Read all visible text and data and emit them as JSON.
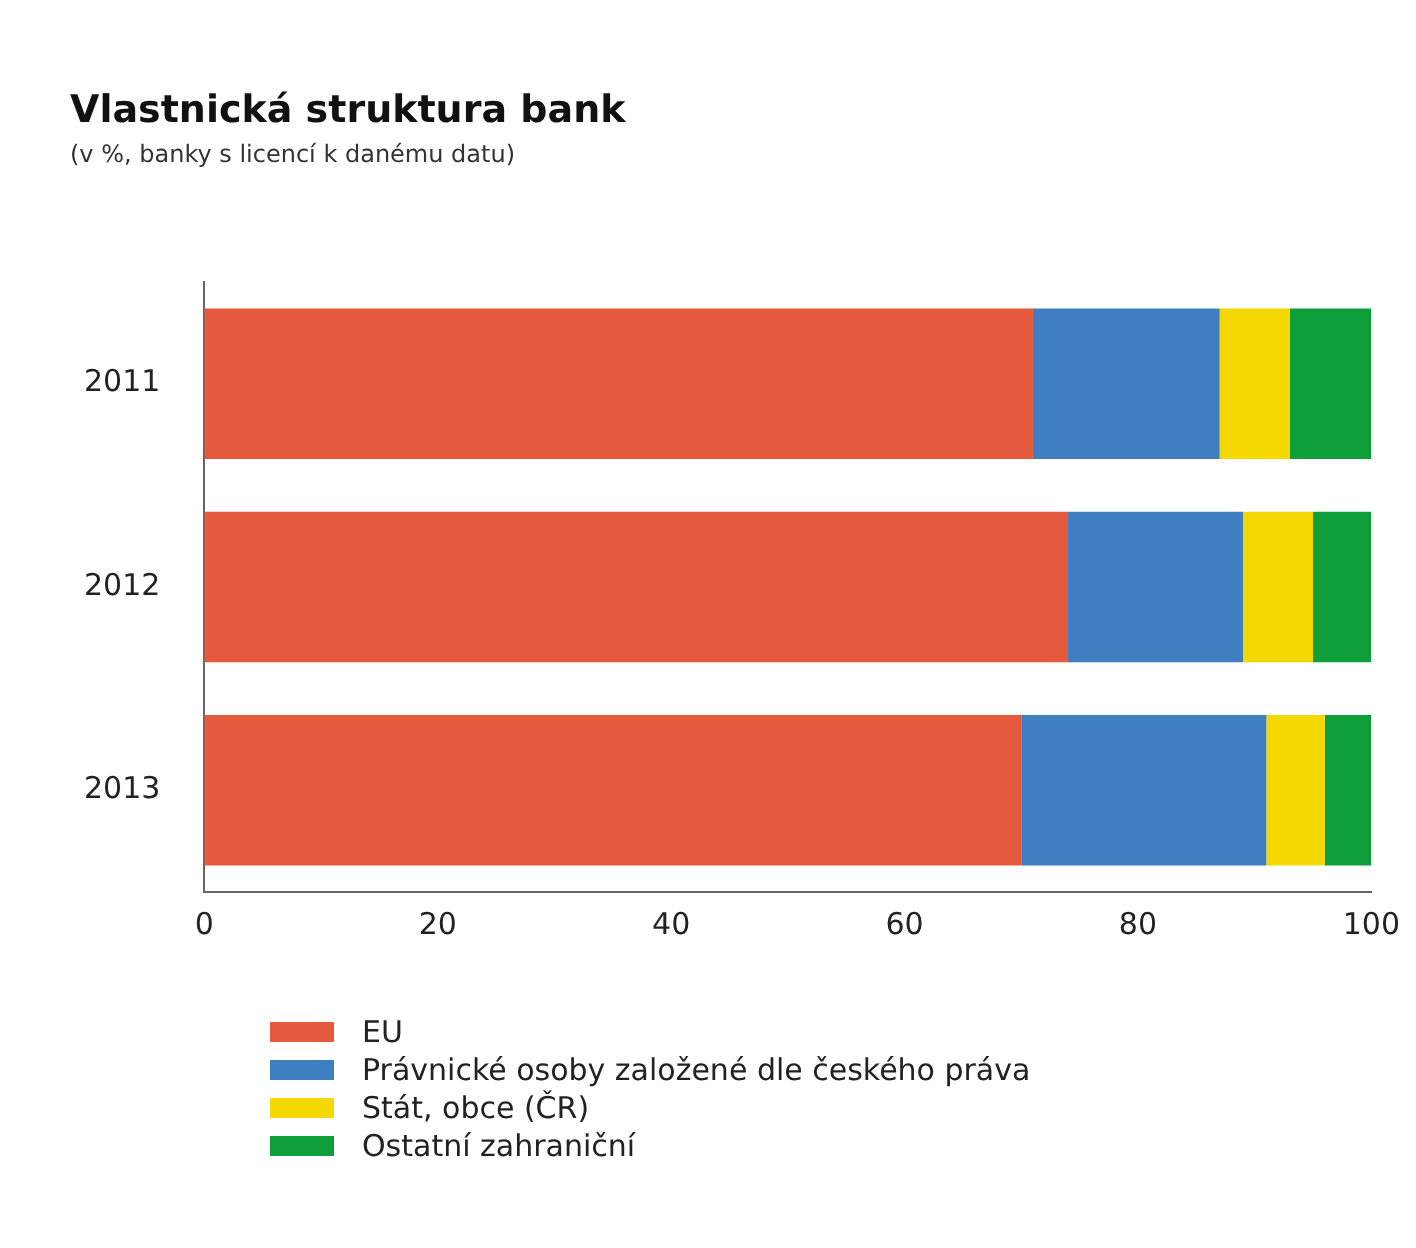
{
  "chart_data": {
    "type": "bar",
    "orientation": "horizontal",
    "stacked": true,
    "title": "Vlastnická struktura bank",
    "subtitle": "(v %, banky s licencí k danému datu)",
    "categories": [
      "2011",
      "2012",
      "2013"
    ],
    "series": [
      {
        "name": "EU",
        "color": "#e55a3c",
        "values": [
          71,
          74,
          70
        ]
      },
      {
        "name": "Právnické osoby založené dle českého práva",
        "color": "#3d7fc1",
        "values": [
          16,
          15,
          21
        ]
      },
      {
        "name": "Stát, obce (ČR)",
        "color": "#f5d800",
        "values": [
          6,
          6,
          5
        ]
      },
      {
        "name": "Ostatní zahraniční",
        "color": "#0e9e3a",
        "values": [
          7,
          5,
          4
        ]
      }
    ],
    "xlim": [
      0,
      100
    ],
    "xticks": [
      0,
      20,
      40,
      60,
      80,
      100
    ],
    "grid": false,
    "legend": "bottom left"
  }
}
